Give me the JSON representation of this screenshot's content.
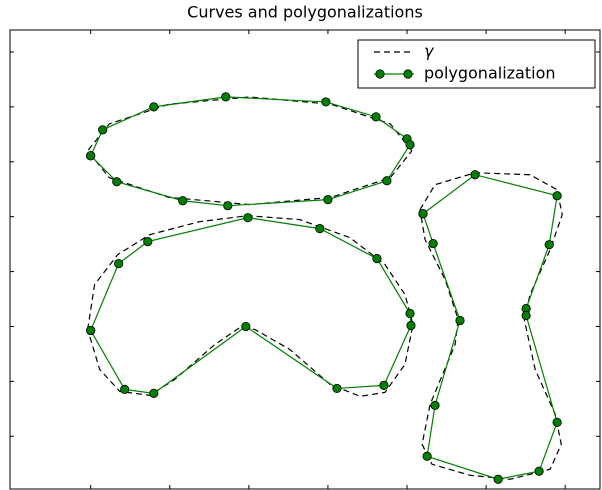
{
  "chart_data": {
    "type": "line",
    "title": "Curves and polygonalizations",
    "xlim": [
      -1.51,
      2.22
    ],
    "ylim": [
      -1.98,
      2.2
    ],
    "xticks": [
      -1,
      -0.5,
      0,
      0.5,
      1,
      1.5,
      2
    ],
    "yticks": [
      -1.5,
      -1,
      -0.5,
      0,
      0.5,
      1,
      1.5,
      2
    ],
    "legend": "upper right",
    "series": [
      {
        "name": "γ",
        "color": "#000000",
        "style": "dashed",
        "x": [
          1.031,
          0.894,
          0.519,
          0.006,
          -0.507,
          -0.882,
          -1.019,
          -0.882,
          -0.507,
          0.006,
          0.519,
          0.894,
          1.031,
          null,
          -1.019,
          -0.975,
          -0.829,
          -0.627,
          -0.31,
          -0.006,
          0.323,
          0.639,
          0.861,
          0.987,
          1.038,
          0.987,
          0.861,
          0.703,
          0.513,
          0.259,
          0.038,
          -0.057,
          -0.215,
          -0.468,
          -0.627,
          -0.816,
          -0.943,
          -1.019,
          null,
          1.082,
          1.177,
          1.43,
          1.778,
          1.949,
          1.981,
          1.905,
          1.778,
          1.741,
          1.81,
          1.937,
          1.975,
          1.905,
          1.652,
          1.399,
          1.158,
          1.095,
          1.146,
          1.304,
          1.323,
          1.241,
          1.114,
          1.082
        ],
        "y": [
          1.1,
          1.345,
          1.524,
          1.59,
          1.524,
          1.345,
          1.1,
          0.855,
          0.676,
          0.61,
          0.676,
          0.855,
          1.1,
          null,
          -0.527,
          -0.118,
          0.155,
          0.336,
          0.455,
          0.509,
          0.473,
          0.309,
          0.064,
          -0.209,
          -0.482,
          -0.845,
          -1.1,
          -1.136,
          -1.027,
          -0.709,
          -0.527,
          -0.509,
          -0.664,
          -0.982,
          -1.127,
          -1.091,
          -0.891,
          -0.527,
          null,
          0.564,
          0.791,
          0.9,
          0.882,
          0.745,
          0.518,
          0.2,
          -0.209,
          -0.436,
          -0.891,
          -1.3,
          -1.573,
          -1.8,
          -1.891,
          -1.855,
          -1.755,
          -1.573,
          -1.209,
          -0.664,
          -0.436,
          -0.073,
          0.291,
          0.564
        ]
      },
      {
        "name": "polygonalization",
        "color": "#008000",
        "style": "solid",
        "marker": "o",
        "x": [
          -1.0,
          -0.924,
          -0.601,
          -0.146,
          0.487,
          0.804,
          1.0,
          1.019,
          0.873,
          0.5,
          -0.133,
          -0.418,
          -0.835,
          -1.0,
          null,
          -1.0,
          -0.823,
          -0.639,
          -0.006,
          0.449,
          0.81,
          1.019,
          1.025,
          0.854,
          0.557,
          -0.019,
          -0.601,
          -0.785,
          -1.0,
          null,
          1.101,
          1.43,
          1.949,
          1.899,
          1.753,
          1.753,
          1.949,
          1.835,
          1.576,
          1.127,
          1.177,
          1.335,
          1.165,
          1.101
        ],
        "y": [
          1.055,
          1.291,
          1.5,
          1.591,
          1.545,
          1.409,
          1.209,
          1.155,
          0.827,
          0.655,
          0.6,
          0.645,
          0.818,
          1.055,
          null,
          -0.536,
          0.073,
          0.273,
          0.491,
          0.391,
          0.118,
          -0.382,
          -0.491,
          -1.036,
          -1.064,
          -0.5,
          -1.109,
          -1.073,
          -0.536,
          null,
          0.527,
          0.882,
          0.691,
          0.245,
          -0.336,
          -0.4,
          -1.373,
          -1.818,
          -1.891,
          -1.682,
          -1.218,
          -0.445,
          0.255,
          0.527
        ]
      }
    ]
  }
}
